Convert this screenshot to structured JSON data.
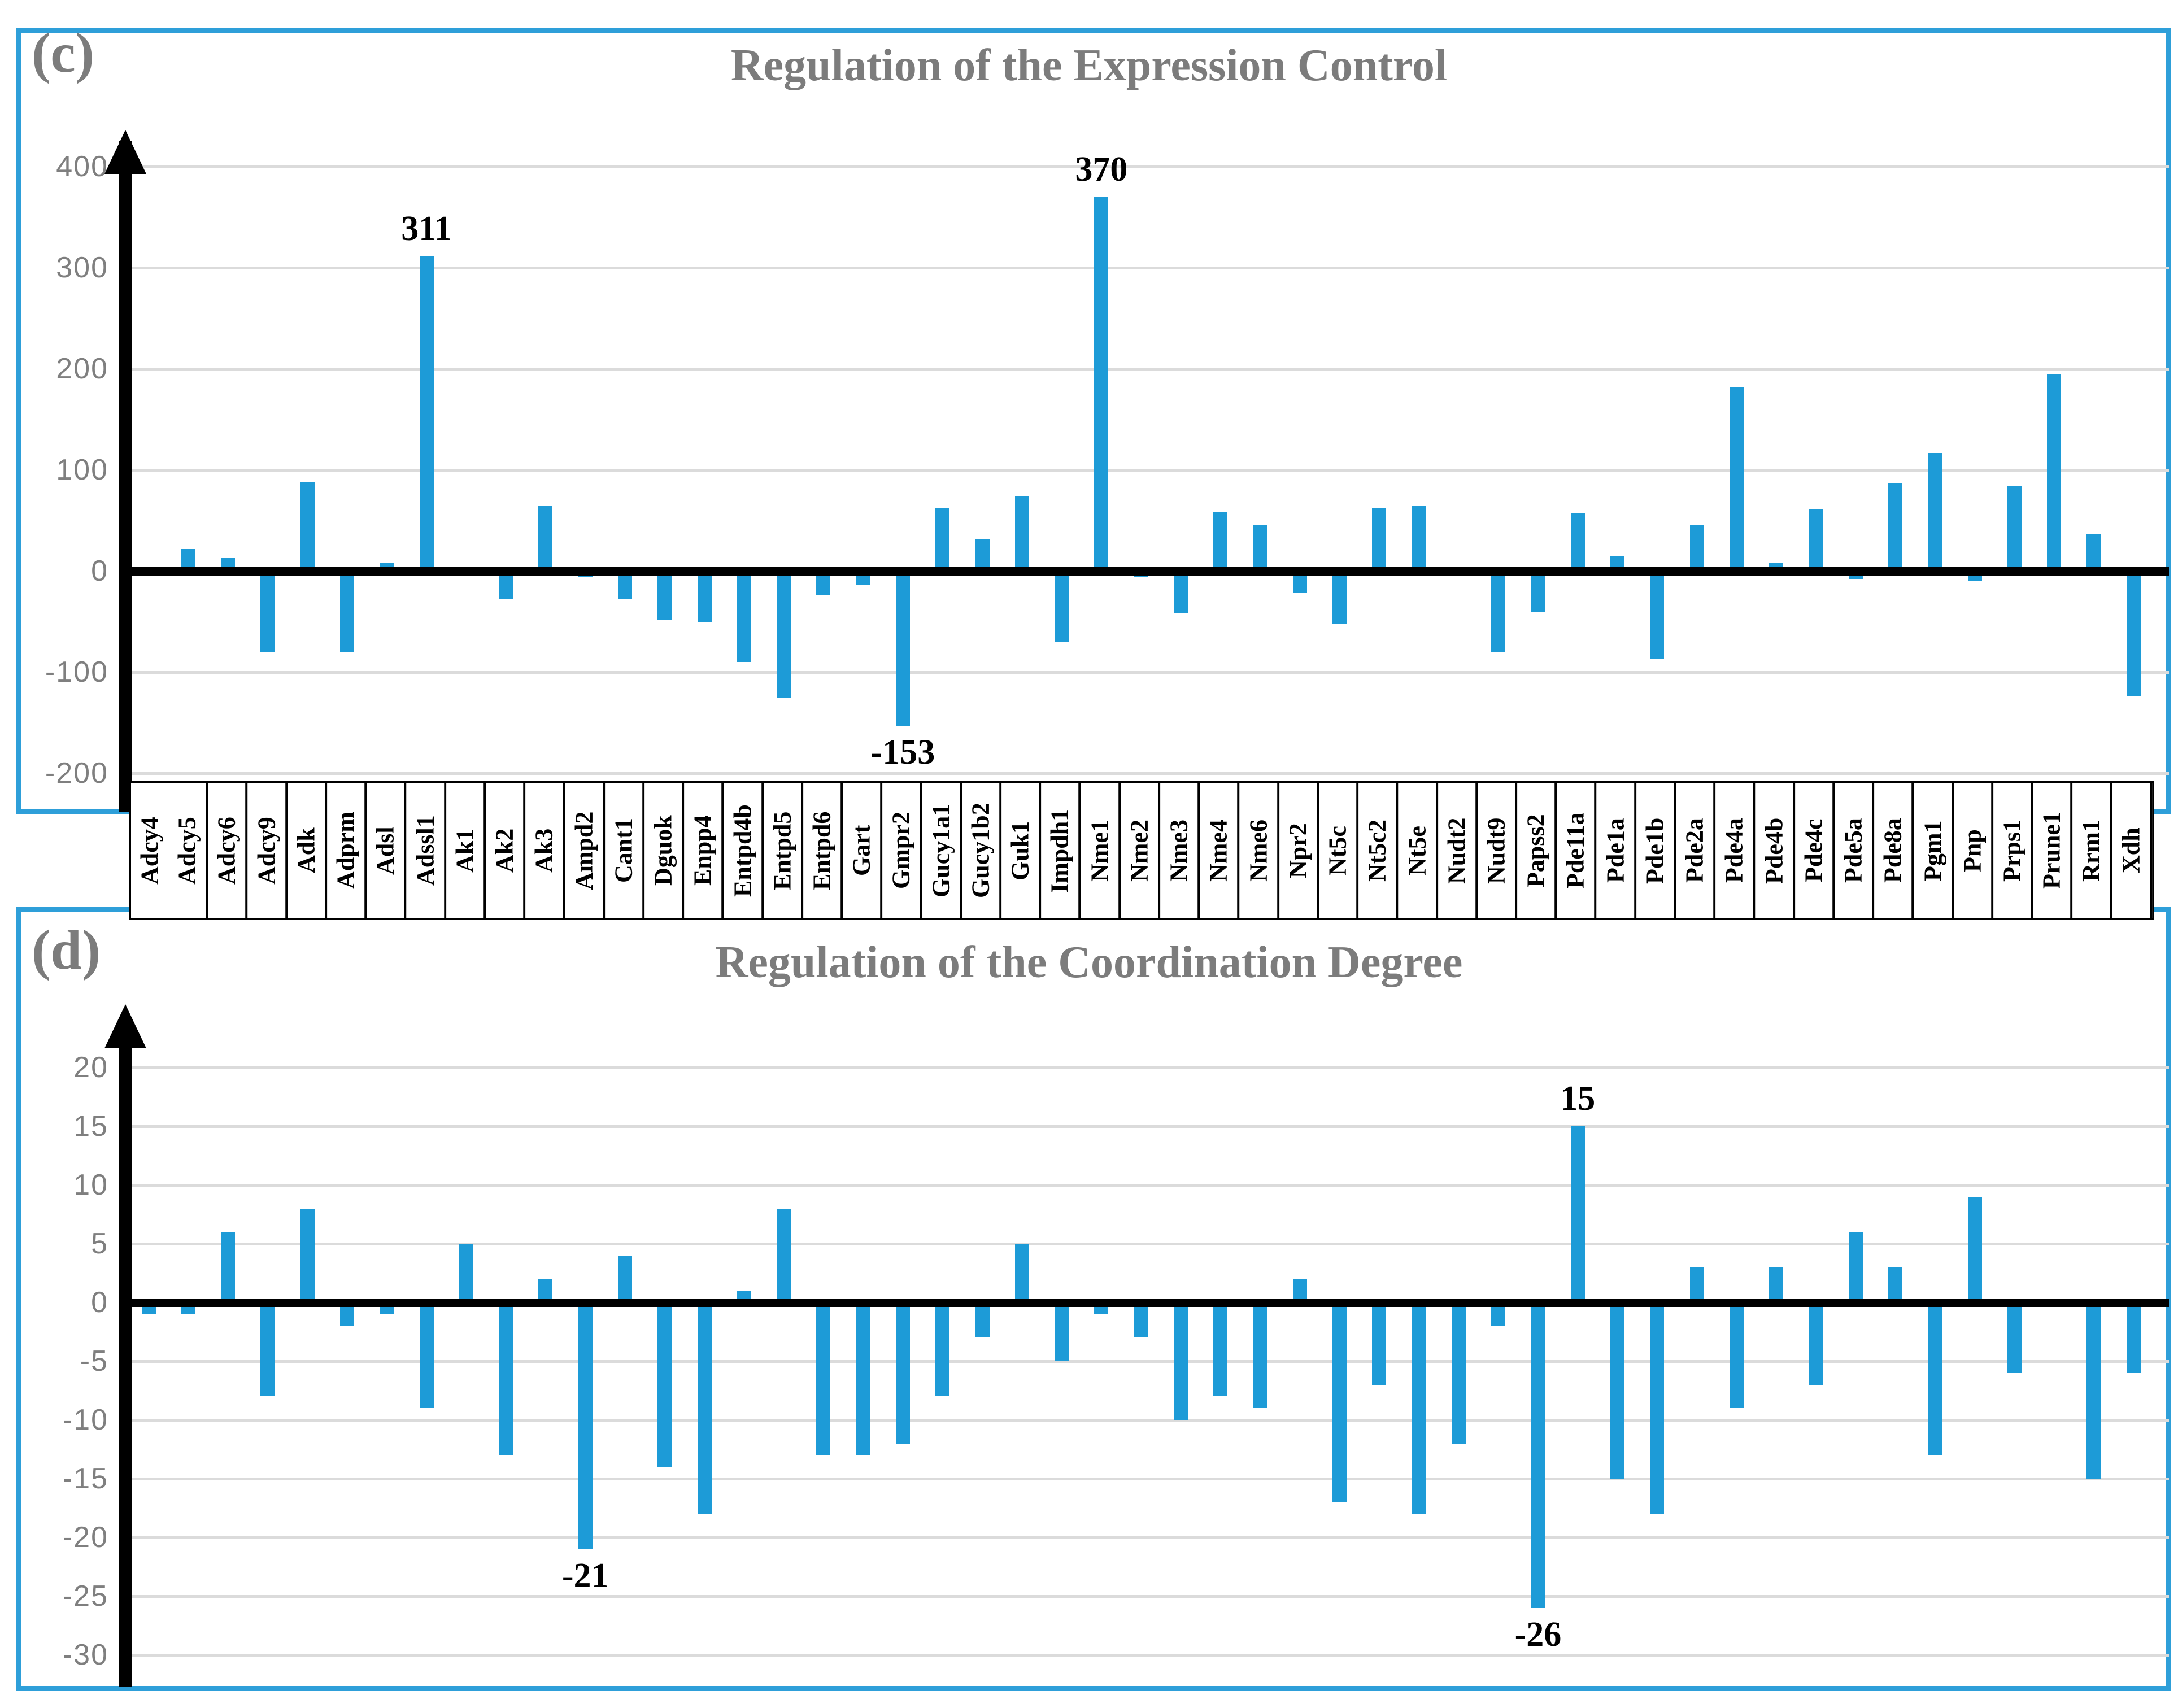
{
  "page": {
    "background": "#FFFFFF",
    "panel_border_color": "#2E9FD9",
    "bar_color": "#1D9BD7",
    "grid_color": "#DBDBDB",
    "axis_color": "#000000",
    "title_color": "#7C7C7C",
    "tick_color": "#7F7F7F"
  },
  "chart_data": [
    {
      "panel_label": "(c)",
      "type": "bar",
      "title": "Regulation of the Expression Control",
      "ylim": [
        -200,
        400
      ],
      "yticks": [
        400,
        300,
        200,
        100,
        0,
        -100,
        -200
      ],
      "grid": true,
      "legend": "none",
      "categories": [
        "Adcy4",
        "Adcy5",
        "Adcy6",
        "Adcy9",
        "Adk",
        "Adprm",
        "Adsl",
        "Adssl1",
        "Ak1",
        "Ak2",
        "Ak3",
        "Ampd2",
        "Cant1",
        "Dguok",
        "Enpp4",
        "Entpd4b",
        "Entpd5",
        "Entpd6",
        "Gart",
        "Gmpr2",
        "Gucy1a1",
        "Gucy1b2",
        "Guk1",
        "Impdh1",
        "Nme1",
        "Nme2",
        "Nme3",
        "Nme4",
        "Nme6",
        "Npr2",
        "Nt5c",
        "Nt5c2",
        "Nt5e",
        "Nudt2",
        "Nudt9",
        "Papss2",
        "Pde11a",
        "Pde1a",
        "Pde1b",
        "Pde2a",
        "Pde4a",
        "Pde4b",
        "Pde4c",
        "Pde5a",
        "Pde8a",
        "Pgm1",
        "Pnp",
        "Prps1",
        "Prune1",
        "Rrm1",
        "Xdh"
      ],
      "values": [
        0,
        22,
        13,
        -80,
        88,
        -80,
        8,
        311,
        0,
        -28,
        65,
        -6,
        -28,
        -48,
        -50,
        -90,
        -125,
        -24,
        -14,
        -153,
        62,
        32,
        74,
        -70,
        370,
        -6,
        -42,
        58,
        46,
        -22,
        -52,
        62,
        65,
        0,
        -80,
        -40,
        57,
        15,
        -87,
        45,
        182,
        8,
        61,
        -8,
        87,
        117,
        -10,
        84,
        195,
        37,
        -124
      ],
      "annotations": [
        {
          "category": "Adssl1",
          "text": "311"
        },
        {
          "category": "Nme1",
          "text": "370"
        },
        {
          "category": "Gmpr2",
          "text": "-153"
        }
      ]
    },
    {
      "panel_label": "(d)",
      "type": "bar",
      "title": "Regulation of the Coordination Degree",
      "ylim": [
        -30,
        20
      ],
      "yticks": [
        20,
        15,
        10,
        5,
        0,
        -5,
        -10,
        -15,
        -20,
        -25,
        -30
      ],
      "grid": true,
      "legend": "none",
      "categories": [
        "Adcy4",
        "Adcy5",
        "Adcy6",
        "Adcy9",
        "Adk",
        "Adprm",
        "Adsl",
        "Adssl1",
        "Ak1",
        "Ak2",
        "Ak3",
        "Ampd2",
        "Cant1",
        "Dguok",
        "Enpp4",
        "Entpd4b",
        "Entpd5",
        "Entpd6",
        "Gart",
        "Gmpr2",
        "Gucy1a1",
        "Gucy1b2",
        "Guk1",
        "Impdh1",
        "Nme1",
        "Nme2",
        "Nme3",
        "Nme4",
        "Nme6",
        "Npr2",
        "Nt5c",
        "Nt5c2",
        "Nt5e",
        "Nudt2",
        "Nudt9",
        "Papss2",
        "Pde11a",
        "Pde1a",
        "Pde1b",
        "Pde2a",
        "Pde4a",
        "Pde4b",
        "Pde4c",
        "Pde5a",
        "Pde8a",
        "Pgm1",
        "Pnp",
        "Prps1",
        "Prune1",
        "Rrm1",
        "Xdh"
      ],
      "values": [
        -1,
        -1,
        6,
        -8,
        8,
        -2,
        -1,
        -9,
        5,
        -13,
        2,
        -21,
        4,
        -14,
        -18,
        1,
        8,
        -13,
        -13,
        -12,
        -8,
        -3,
        5,
        -5,
        -1,
        -3,
        -10,
        -8,
        -9,
        2,
        -17,
        -7,
        -18,
        -12,
        -2,
        -26,
        15,
        -15,
        -18,
        3,
        -9,
        3,
        -7,
        6,
        3,
        -13,
        9,
        -6,
        0,
        -15,
        -6
      ],
      "annotations": [
        {
          "category": "Pde11a",
          "text": "15"
        },
        {
          "category": "Ampd2",
          "text": "-21"
        },
        {
          "category": "Papss2",
          "text": "-26"
        }
      ]
    }
  ],
  "x_axis_labels": [
    "Adcy4",
    "Adcy5",
    "Adcy6",
    "Adcy9",
    "Adk",
    "Adprm",
    "Adsl",
    "Adssl1",
    "Ak1",
    "Ak2",
    "Ak3",
    "Ampd2",
    "Cant1",
    "Dguok",
    "Enpp4",
    "Entpd4b",
    "Entpd5",
    "Entpd6",
    "Gart",
    "Gmpr2",
    "Gucy1a1",
    "Gucy1b2",
    "Guk1",
    "Impdh1",
    "Nme1",
    "Nme2",
    "Nme3",
    "Nme4",
    "Nme6",
    "Npr2",
    "Nt5c",
    "Nt5c2",
    "Nt5e",
    "Nudt2",
    "Nudt9",
    "Papss2",
    "Pde11a",
    "Pde1a",
    "Pde1b",
    "Pde2a",
    "Pde4a",
    "Pde4b",
    "Pde4c",
    "Pde5a",
    "Pde8a",
    "Pgm1",
    "Pnp",
    "Prps1",
    "Prune1",
    "Rrm1",
    "Xdh"
  ]
}
